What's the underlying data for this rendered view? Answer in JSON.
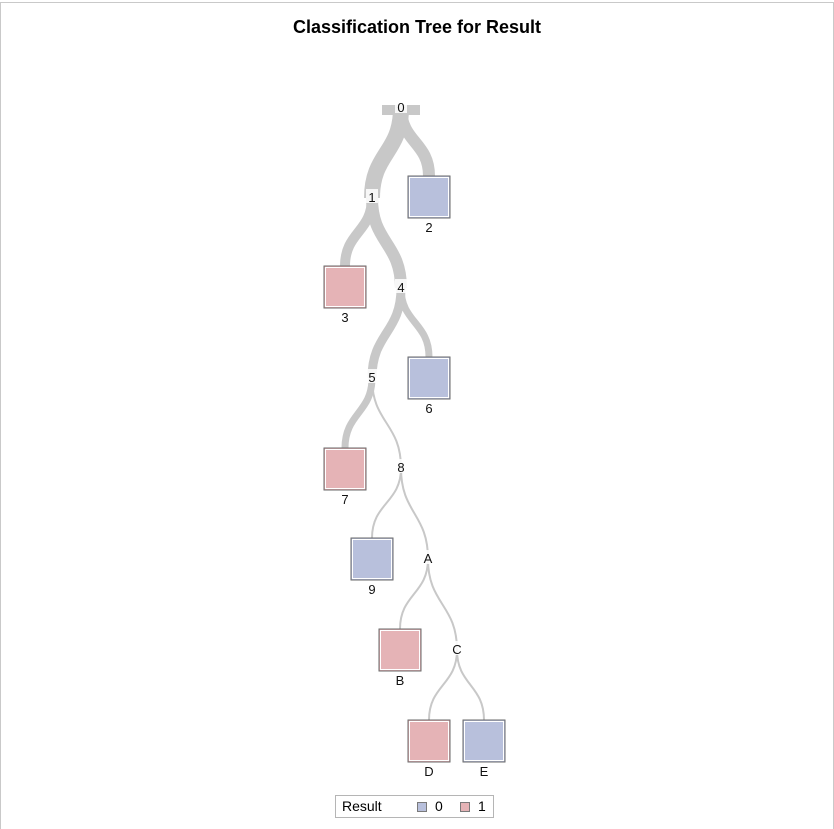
{
  "title": "Classification Tree for Result",
  "colors": {
    "class_0": "#b8c0dc",
    "class_1": "#e5b3b6",
    "branch": "#c8c8c8",
    "split_bg": "#ffffff"
  },
  "tree": {
    "splits": [
      {
        "id": "0",
        "parent": null
      },
      {
        "id": "1",
        "parent": "0"
      },
      {
        "id": "4",
        "parent": "1"
      },
      {
        "id": "5",
        "parent": "4"
      },
      {
        "id": "8",
        "parent": "5"
      },
      {
        "id": "A",
        "parent": "8"
      },
      {
        "id": "C",
        "parent": "A"
      }
    ],
    "leaves": [
      {
        "id": "2",
        "parent": "0",
        "class": "0"
      },
      {
        "id": "3",
        "parent": "1",
        "class": "1"
      },
      {
        "id": "6",
        "parent": "4",
        "class": "0"
      },
      {
        "id": "7",
        "parent": "5",
        "class": "1"
      },
      {
        "id": "9",
        "parent": "8",
        "class": "0"
      },
      {
        "id": "B",
        "parent": "A",
        "class": "1"
      },
      {
        "id": "D",
        "parent": "C",
        "class": "1"
      },
      {
        "id": "E",
        "parent": "C",
        "class": "0"
      }
    ]
  },
  "legend": {
    "title": "Result",
    "items": [
      {
        "label": "0",
        "class": "0"
      },
      {
        "label": "1",
        "class": "1"
      }
    ]
  }
}
